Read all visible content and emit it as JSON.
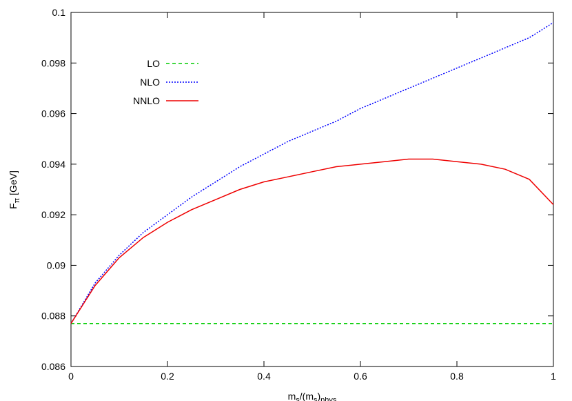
{
  "chart_data": {
    "type": "line",
    "xlabel": "m_s/(m_s)_phys",
    "ylabel": "F_π [GeV]",
    "xlim": [
      0,
      1
    ],
    "ylim": [
      0.086,
      0.1
    ],
    "x_ticks": [
      "0",
      "0.2",
      "0.4",
      "0.6",
      "0.8",
      "1"
    ],
    "y_ticks": [
      "0.086",
      "0.088",
      "0.09",
      "0.092",
      "0.094",
      "0.096",
      "0.098",
      "0.1"
    ],
    "grid": false,
    "legend_position": "top-left",
    "series": [
      {
        "name": "LO",
        "color": "#00cc00",
        "dash": "dashed",
        "x": [
          0,
          1
        ],
        "y": [
          0.0877,
          0.0877
        ]
      },
      {
        "name": "NLO",
        "color": "#0000ff",
        "dash": "dotted",
        "x": [
          0,
          0.05,
          0.1,
          0.15,
          0.2,
          0.25,
          0.3,
          0.35,
          0.4,
          0.45,
          0.5,
          0.55,
          0.6,
          0.65,
          0.7,
          0.75,
          0.8,
          0.85,
          0.9,
          0.95,
          1.0
        ],
        "y": [
          0.0877,
          0.0893,
          0.0904,
          0.0913,
          0.092,
          0.0927,
          0.0933,
          0.0939,
          0.0944,
          0.0949,
          0.0953,
          0.0957,
          0.0962,
          0.0966,
          0.097,
          0.0974,
          0.0978,
          0.0982,
          0.0986,
          0.099,
          0.0996
        ]
      },
      {
        "name": "NNLO",
        "color": "#ee0000",
        "dash": "solid",
        "x": [
          0,
          0.05,
          0.1,
          0.15,
          0.2,
          0.25,
          0.3,
          0.35,
          0.4,
          0.45,
          0.5,
          0.55,
          0.6,
          0.65,
          0.7,
          0.75,
          0.8,
          0.85,
          0.9,
          0.95,
          1.0
        ],
        "y": [
          0.0877,
          0.0892,
          0.0903,
          0.0911,
          0.0917,
          0.0922,
          0.0926,
          0.093,
          0.0933,
          0.0935,
          0.0937,
          0.0939,
          0.094,
          0.0941,
          0.0942,
          0.0942,
          0.0941,
          0.094,
          0.0938,
          0.0934,
          0.0924
        ]
      }
    ]
  }
}
